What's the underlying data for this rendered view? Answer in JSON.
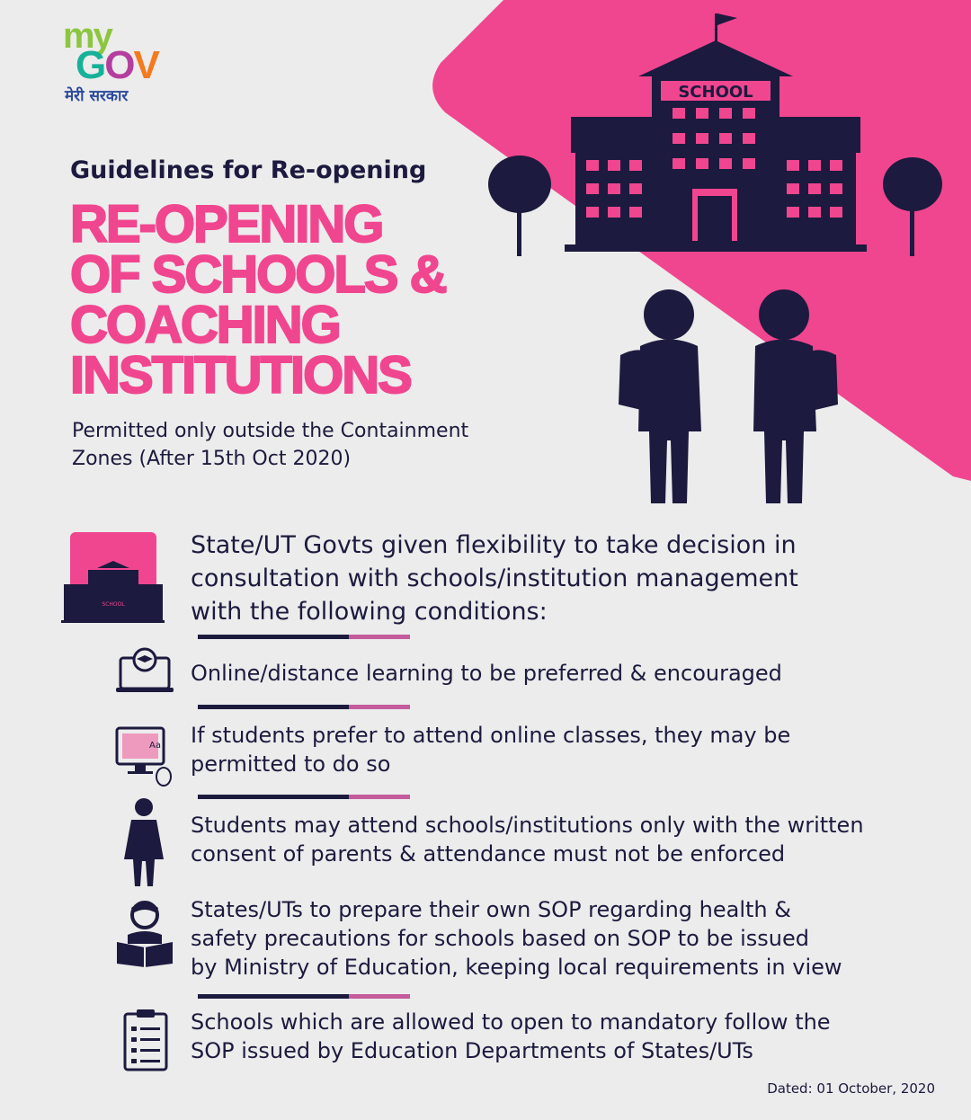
{
  "colors": {
    "pink": "#f0468f",
    "navy": "#1c1a3e",
    "background": "#ececec"
  },
  "logo": {
    "my": "my",
    "gov_g": "G",
    "gov_o": "O",
    "gov_v": "V",
    "tagline": "मेरी सरकार"
  },
  "header": {
    "subtitle": "Guidelines for Re-opening",
    "title_lines": [
      "RE-OPENING",
      "OF SCHOOLS &",
      "COACHING",
      "INSTITUTIONS"
    ],
    "permitted_lines": [
      "Permitted only outside the Containment",
      "Zones (After 15th Oct 2020)"
    ]
  },
  "illustration": {
    "school_sign": "SCHOOL",
    "small_school_sign": "SCHOOL"
  },
  "intro_lines": [
    "State/UT Govts given flexibility to take decision in",
    "consultation with schools/institution management",
    "with the following conditions:"
  ],
  "conditions": [
    {
      "icon": "laptop-graduation-icon",
      "lines": [
        "Online/distance learning to be preferred & encouraged"
      ]
    },
    {
      "icon": "online-class-monitor-icon",
      "lines": [
        "If students prefer to attend online classes, they may be",
        "permitted to do so"
      ]
    },
    {
      "icon": "student-icon",
      "lines": [
        "Students may attend schools/institutions only with the written",
        "consent of parents & attendance must not be enforced"
      ]
    },
    {
      "icon": "reading-person-icon",
      "lines": [
        "States/UTs to prepare their own SOP regarding health &",
        "safety precautions for schools based on SOP to be issued",
        "by Ministry of Education, keeping local requirements in view"
      ]
    },
    {
      "icon": "clipboard-checklist-icon",
      "lines": [
        "Schools which are allowed to open to mandatory follow the",
        "SOP issued by Education Departments of States/UTs"
      ]
    }
  ],
  "footer": {
    "date": "Dated: 01 October, 2020"
  }
}
